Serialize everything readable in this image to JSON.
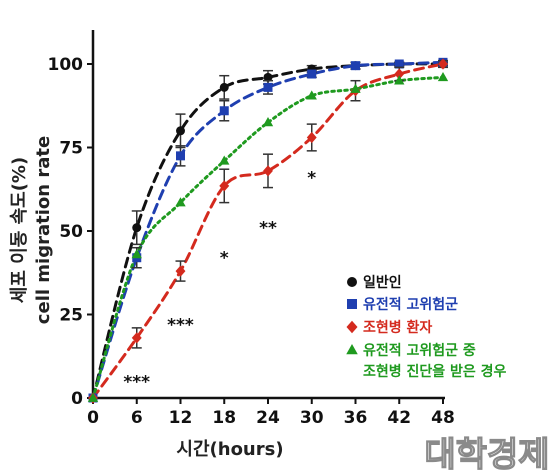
{
  "chart_data": {
    "type": "line",
    "xlabel": "시간(hours)",
    "ylabel_line1": "세포 이동 속도(%)",
    "ylabel_line2": "cell migration rate",
    "xlim": [
      0,
      48
    ],
    "ylim": [
      0,
      110
    ],
    "x_ticks": [
      0,
      6,
      12,
      18,
      24,
      30,
      36,
      42,
      48
    ],
    "y_ticks": [
      0,
      25,
      50,
      75,
      100
    ],
    "grid": false,
    "legend_position": "right",
    "series": [
      {
        "name": "일반인",
        "color": "#111111",
        "marker": "circle",
        "line_style": "dashed",
        "x": [
          0,
          6,
          12,
          18,
          24,
          30,
          36,
          42,
          48
        ],
        "y": [
          0,
          51,
          80,
          93,
          96,
          98.5,
          99.5,
          100,
          100
        ],
        "err": [
          0,
          5,
          5,
          3.5,
          2,
          1,
          1,
          0.5,
          0.5
        ]
      },
      {
        "name": "유전적 고위험군",
        "color": "#1f3fb0",
        "marker": "square",
        "line_style": "dashed",
        "x": [
          0,
          6,
          12,
          18,
          24,
          30,
          36,
          42,
          48
        ],
        "y": [
          0,
          42,
          72.5,
          86,
          93,
          97,
          99.5,
          100,
          100.5
        ],
        "err": [
          0,
          3,
          3,
          3,
          2,
          1,
          1,
          0.5,
          0.5
        ]
      },
      {
        "name": "조현병 환자",
        "color": "#d42a1e",
        "marker": "diamond",
        "line_style": "dashed",
        "x": [
          0,
          6,
          12,
          18,
          24,
          30,
          36,
          42,
          48
        ],
        "y": [
          0,
          18,
          38,
          63.5,
          68,
          78,
          92,
          97,
          100
        ],
        "err": [
          0,
          3,
          3,
          5,
          5,
          4,
          3,
          2,
          1
        ]
      },
      {
        "name": "유전적 고위험군 중 조현병 진단을 받은 경우",
        "name_line1": "유전적 고위험군 중",
        "name_line2": "조현병 진단을 받은 경우",
        "color": "#1f9a1f",
        "marker": "triangle",
        "line_style": "dotted",
        "x": [
          0,
          6,
          12,
          18,
          24,
          30,
          36,
          42,
          48
        ],
        "y": [
          0,
          43,
          58.5,
          71,
          82.5,
          90.5,
          92.5,
          95,
          96
        ],
        "err": [
          0,
          0,
          0,
          0,
          0,
          0,
          0,
          0,
          0
        ]
      }
    ],
    "annotations": [
      {
        "text": "***",
        "x": 6,
        "y": 5
      },
      {
        "text": "***",
        "x": 12,
        "y": 22
      },
      {
        "text": "*",
        "x": 18,
        "y": 42
      },
      {
        "text": "**",
        "x": 24,
        "y": 51
      },
      {
        "text": "*",
        "x": 30,
        "y": 66
      }
    ]
  },
  "watermark": "대학경제"
}
